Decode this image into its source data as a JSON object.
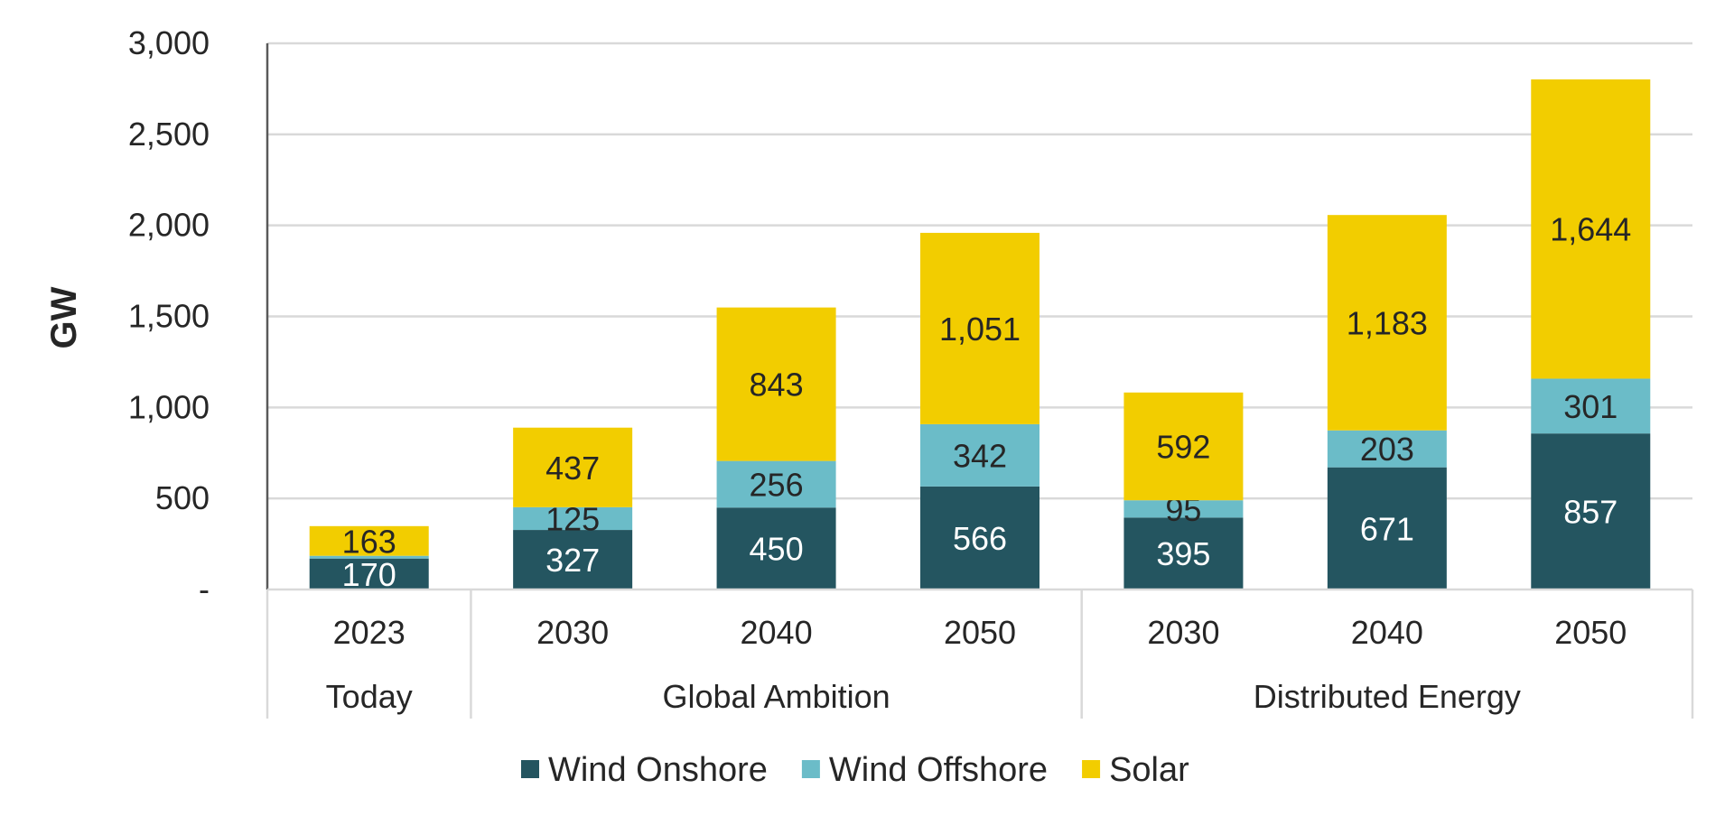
{
  "chart_data": {
    "type": "bar",
    "stacked": true,
    "ylabel": "GW",
    "xlabel": "",
    "ylim": [
      0,
      3000
    ],
    "yticks": [
      {
        "value": 0,
        "label": "-"
      },
      {
        "value": 500,
        "label": "500"
      },
      {
        "value": 1000,
        "label": "1,000"
      },
      {
        "value": 1500,
        "label": "1,500"
      },
      {
        "value": 2000,
        "label": "2,000"
      },
      {
        "value": 2500,
        "label": "2,500"
      },
      {
        "value": 3000,
        "label": "3,000"
      }
    ],
    "grid": true,
    "legend_position": "bottom",
    "categories": [
      "2023",
      "2030",
      "2040",
      "2050",
      "2030",
      "2040",
      "2050"
    ],
    "groups": [
      {
        "label": "Today",
        "count": 1
      },
      {
        "label": "Global Ambition",
        "count": 3
      },
      {
        "label": "Distributed Energy",
        "count": 3
      }
    ],
    "series": [
      {
        "name": "Wind Onshore",
        "color": "#245560",
        "label_color": "#ffffff",
        "values": [
          170,
          327,
          450,
          566,
          395,
          671,
          857
        ],
        "labels": [
          "170",
          "327",
          "450",
          "566",
          "395",
          "671",
          "857"
        ]
      },
      {
        "name": "Wind Offshore",
        "color": "#6bbcc8",
        "label_color": "#262626",
        "values": [
          15,
          125,
          256,
          342,
          95,
          203,
          301
        ],
        "labels": [
          "",
          "125",
          "256",
          "342",
          "95",
          "203",
          "301"
        ]
      },
      {
        "name": "Solar",
        "color": "#f2cd00",
        "label_color": "#262626",
        "values": [
          163,
          437,
          843,
          1051,
          592,
          1183,
          1644
        ],
        "labels": [
          "163",
          "437",
          "843",
          "1,051",
          "592",
          "1,183",
          "1,644"
        ]
      }
    ],
    "colors": {
      "grid": "#d9d9d9",
      "axis": "#595959",
      "text": "#262626"
    }
  }
}
